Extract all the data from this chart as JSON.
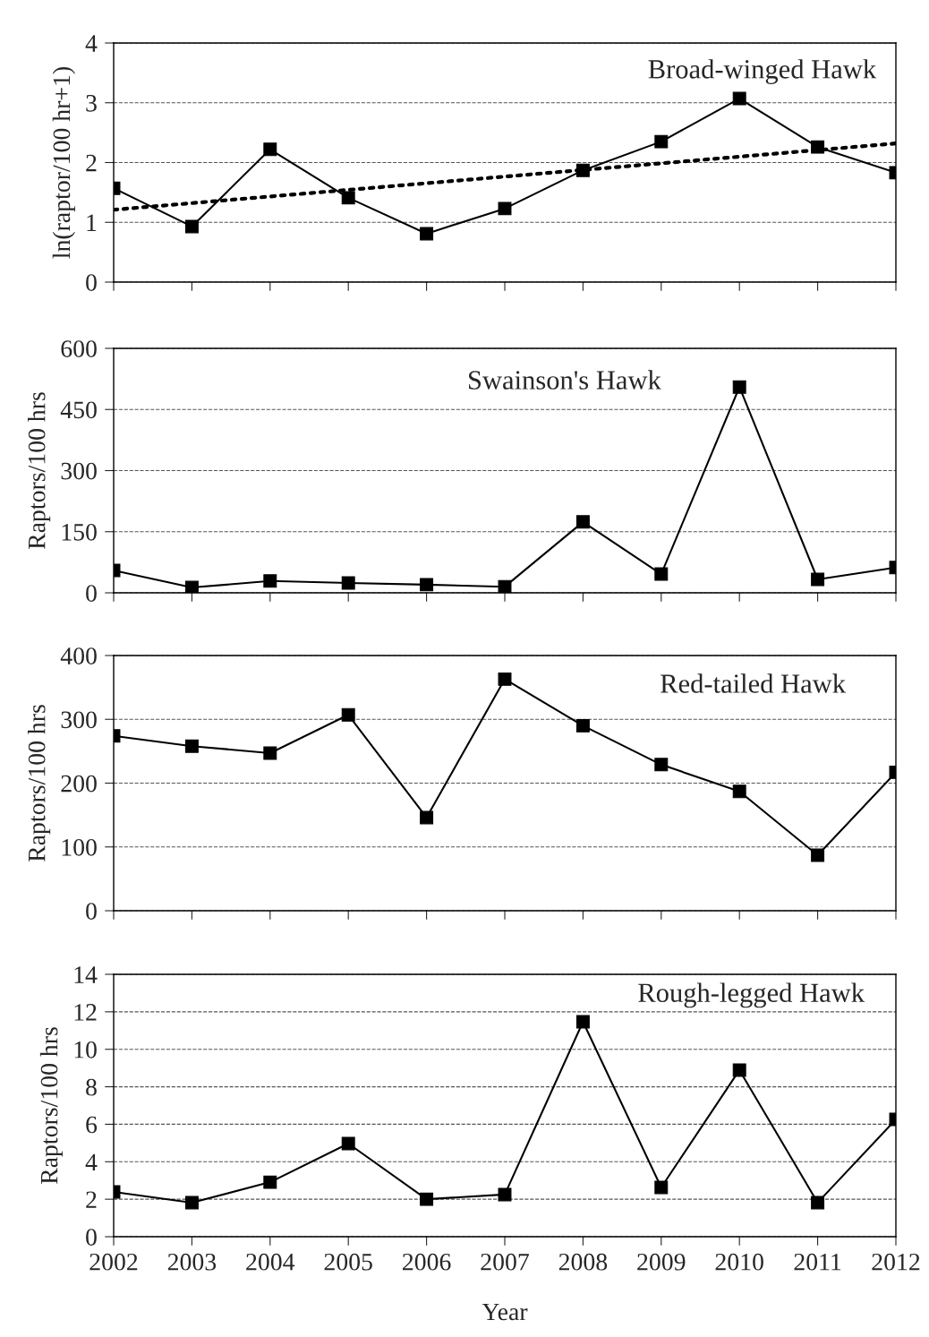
{
  "chart_data": [
    {
      "type": "line",
      "title": "Broad-winged Hawk",
      "ylabel": "ln(raptor/100 hr+1)",
      "x": [
        2002,
        2003,
        2004,
        2005,
        2006,
        2007,
        2008,
        2009,
        2010,
        2011,
        2012
      ],
      "series": [
        {
          "color": "#000000",
          "values": [
            1.57,
            0.93,
            2.22,
            1.41,
            0.81,
            1.23,
            1.87,
            2.35,
            3.07,
            2.26,
            1.83
          ],
          "marker": "square",
          "line_style": "solid"
        },
        {
          "color": "#000000",
          "x": [
            2002,
            2012
          ],
          "values": [
            1.21,
            2.32
          ],
          "marker": "none",
          "line_style": "dotted"
        }
      ],
      "xlim": [
        2002,
        2012
      ],
      "xticks": [
        2002,
        2003,
        2004,
        2005,
        2006,
        2007,
        2008,
        2009,
        2010,
        2011,
        2012
      ],
      "ylim": [
        0,
        4
      ],
      "yticks": [
        0,
        1,
        2,
        3,
        4
      ],
      "grid": "y",
      "tick_labels": "y"
    },
    {
      "type": "line",
      "title": "Swainson's Hawk",
      "ylabel": "Raptors/100 hrs",
      "x": [
        2002,
        2003,
        2004,
        2005,
        2006,
        2007,
        2008,
        2009,
        2010,
        2011,
        2012
      ],
      "series": [
        {
          "color": "#000000",
          "values": [
            55,
            13,
            29,
            24,
            20,
            15,
            174,
            46,
            505,
            33,
            62
          ],
          "marker": "square",
          "line_style": "solid"
        }
      ],
      "xlim": [
        2002,
        2012
      ],
      "xticks": [
        2002,
        2003,
        2004,
        2005,
        2006,
        2007,
        2008,
        2009,
        2010,
        2011,
        2012
      ],
      "ylim": [
        0,
        600
      ],
      "yticks": [
        0,
        150,
        300,
        450,
        600
      ],
      "grid": "y",
      "tick_labels": "y"
    },
    {
      "type": "line",
      "title": "Red-tailed Hawk",
      "ylabel": "Raptors/100 hrs",
      "x": [
        2002,
        2003,
        2004,
        2005,
        2006,
        2007,
        2008,
        2009,
        2010,
        2011,
        2012
      ],
      "series": [
        {
          "color": "#000000",
          "values": [
            274,
            258,
            247,
            307,
            146,
            363,
            290,
            229,
            187,
            87,
            217
          ],
          "marker": "square",
          "line_style": "solid"
        }
      ],
      "xlim": [
        2002,
        2012
      ],
      "xticks": [
        2002,
        2003,
        2004,
        2005,
        2006,
        2007,
        2008,
        2009,
        2010,
        2011,
        2012
      ],
      "ylim": [
        0,
        400
      ],
      "yticks": [
        0,
        100,
        200,
        300,
        400
      ],
      "grid": "y",
      "tick_labels": "y"
    },
    {
      "type": "line",
      "title": "Rough-legged Hawk",
      "ylabel": "Raptors/100 hrs",
      "xlabel": "Year",
      "x": [
        2002,
        2003,
        2004,
        2005,
        2006,
        2007,
        2008,
        2009,
        2010,
        2011,
        2012
      ],
      "series": [
        {
          "color": "#000000",
          "values": [
            2.39,
            1.82,
            2.91,
            4.97,
            2.0,
            2.25,
            11.47,
            2.63,
            8.89,
            1.82,
            6.26
          ],
          "marker": "square",
          "line_style": "solid"
        }
      ],
      "xlim": [
        2002,
        2012
      ],
      "xticks": [
        2002,
        2003,
        2004,
        2005,
        2006,
        2007,
        2008,
        2009,
        2010,
        2011,
        2012
      ],
      "ylim": [
        0,
        14
      ],
      "yticks": [
        0,
        2,
        4,
        6,
        8,
        10,
        12,
        14
      ],
      "grid": "y"
    }
  ]
}
